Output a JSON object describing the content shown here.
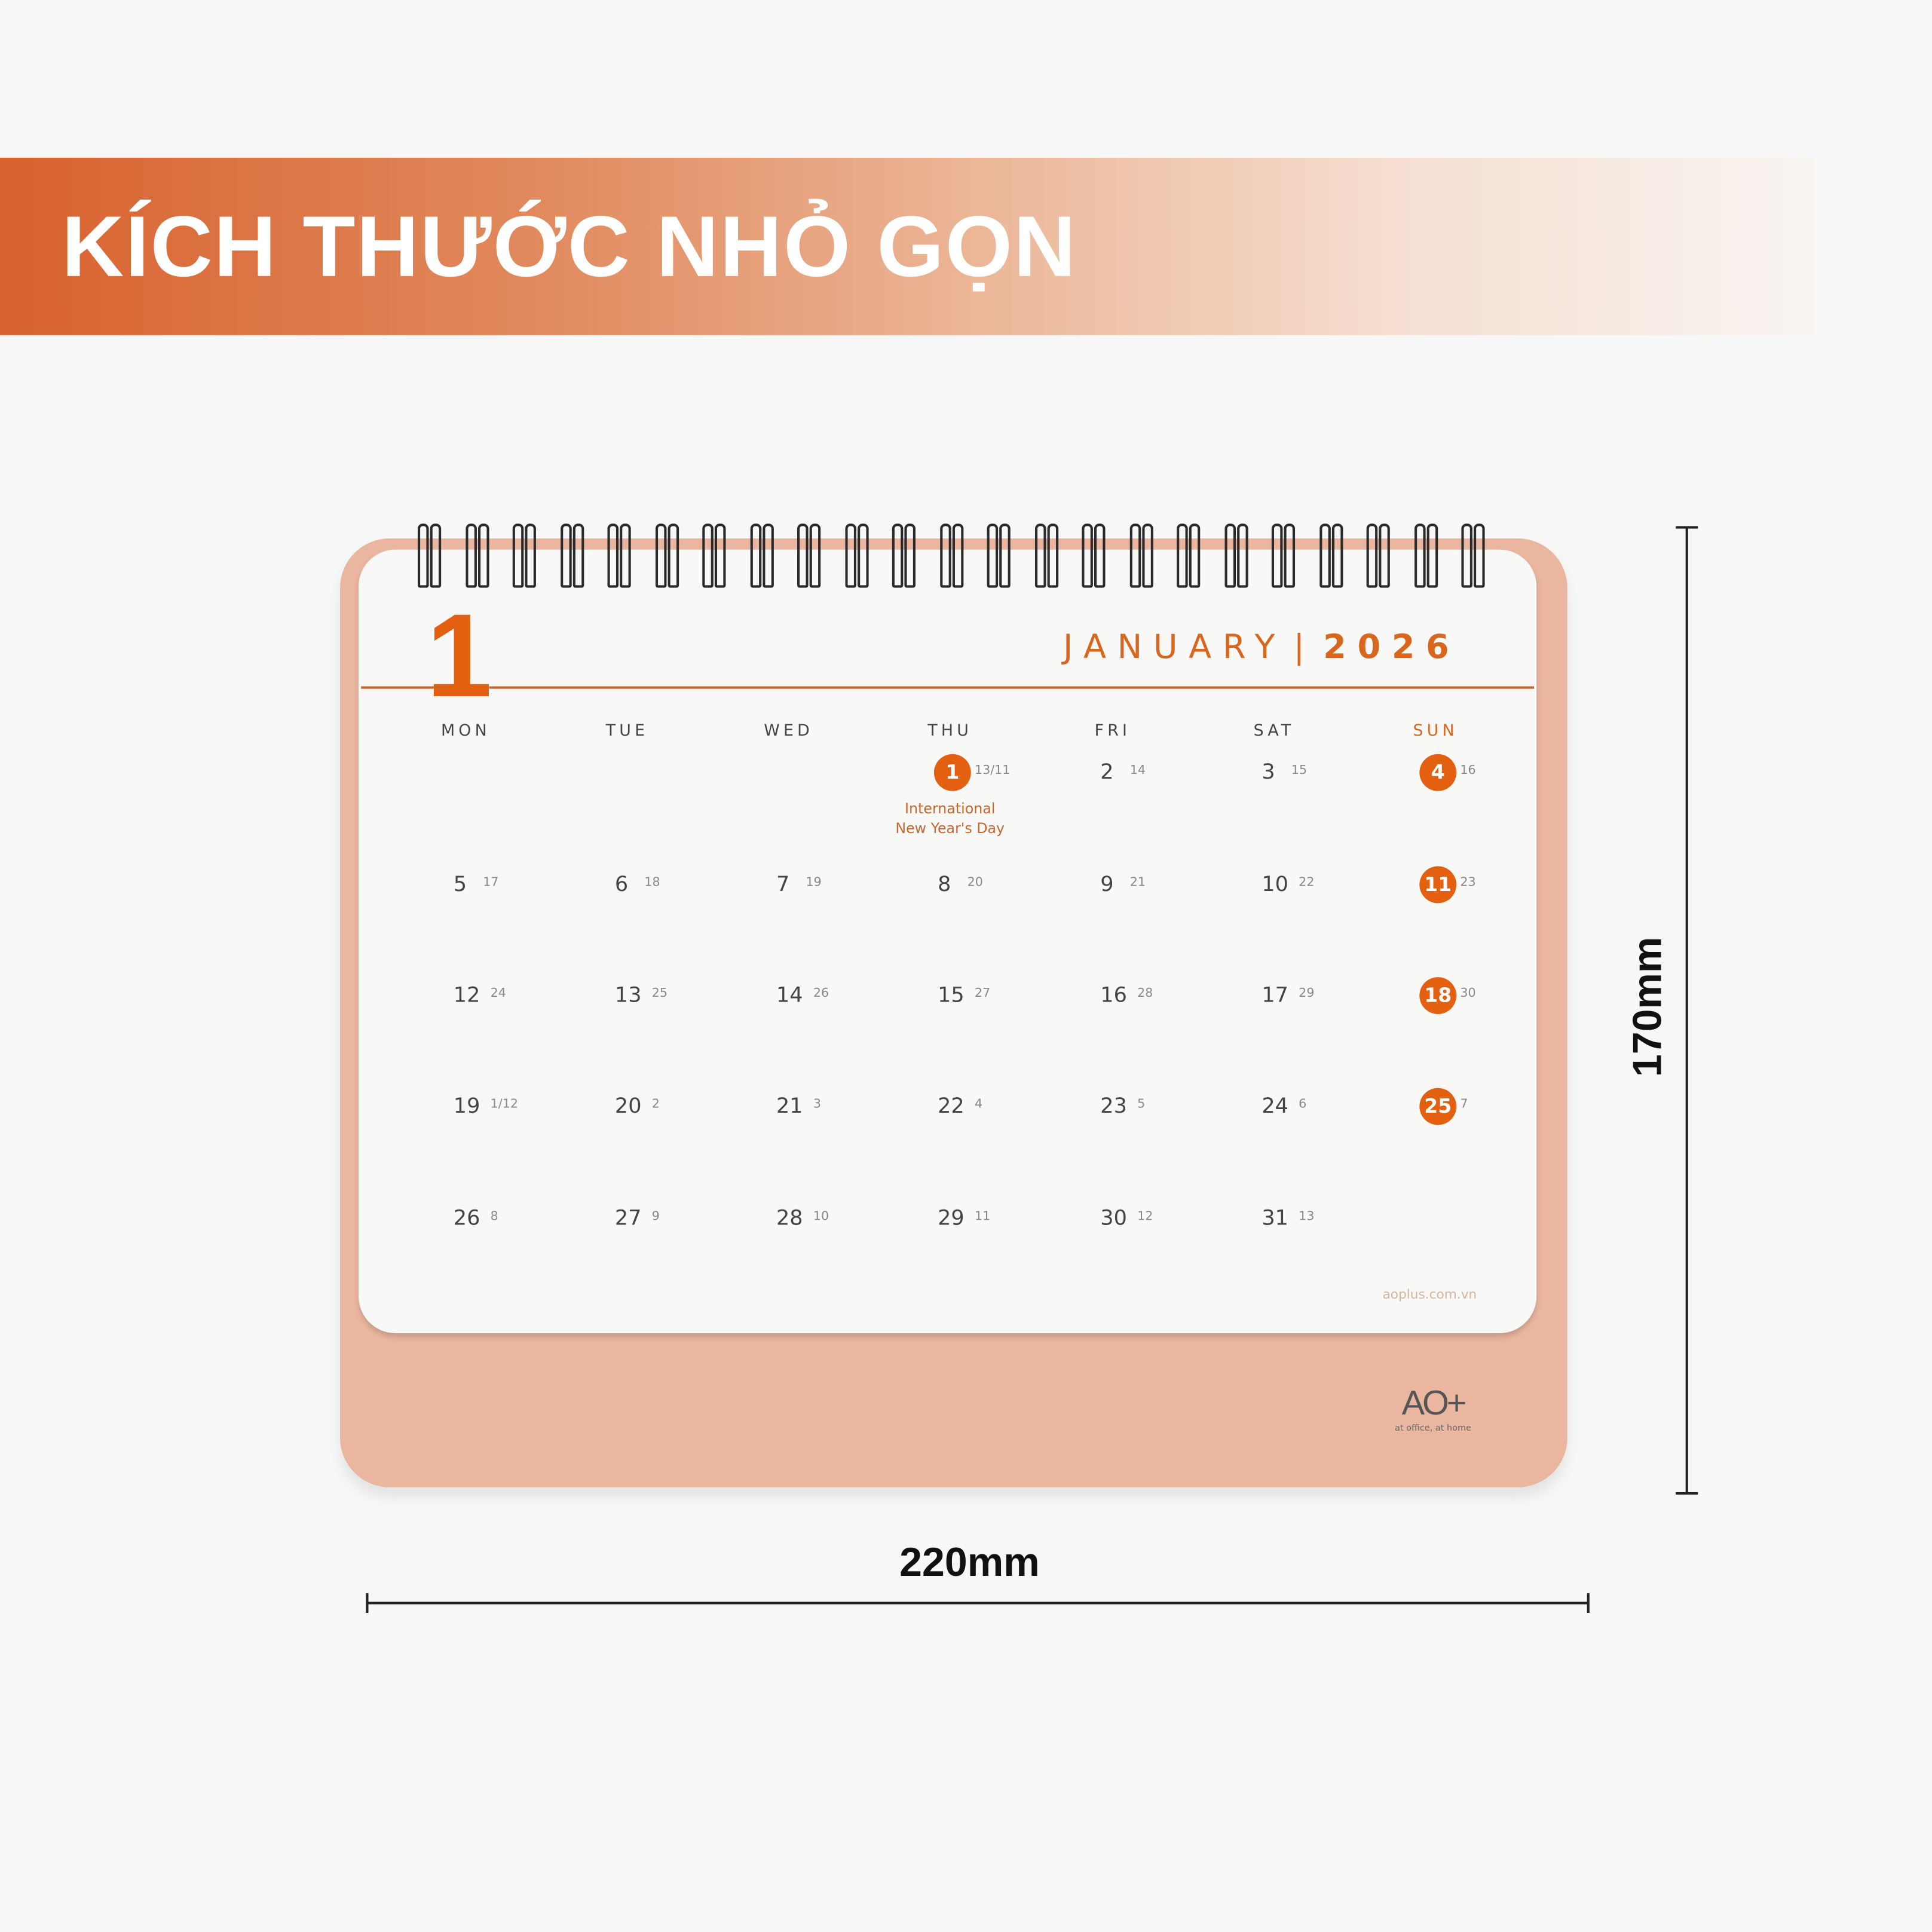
{
  "banner": {
    "title": "KÍCH THƯỚC NHỎ GỌN"
  },
  "calendar": {
    "month_number": "1",
    "month_name": "JANUARY",
    "separator": "|",
    "year": "2026",
    "weekdays": [
      "MON",
      "TUE",
      "WED",
      "THU",
      "FRI",
      "SAT",
      "SUN"
    ],
    "weeks": [
      [
        null,
        null,
        null,
        {
          "day": "1",
          "lunar": "13/11",
          "holiday": true
        },
        {
          "day": "2",
          "lunar": "14"
        },
        {
          "day": "3",
          "lunar": "15"
        },
        {
          "day": "4",
          "lunar": "16",
          "holiday": true
        }
      ],
      [
        {
          "day": "5",
          "lunar": "17"
        },
        {
          "day": "6",
          "lunar": "18"
        },
        {
          "day": "7",
          "lunar": "19"
        },
        {
          "day": "8",
          "lunar": "20"
        },
        {
          "day": "9",
          "lunar": "21"
        },
        {
          "day": "10",
          "lunar": "22"
        },
        {
          "day": "11",
          "lunar": "23",
          "holiday": true
        }
      ],
      [
        {
          "day": "12",
          "lunar": "24"
        },
        {
          "day": "13",
          "lunar": "25"
        },
        {
          "day": "14",
          "lunar": "26"
        },
        {
          "day": "15",
          "lunar": "27"
        },
        {
          "day": "16",
          "lunar": "28"
        },
        {
          "day": "17",
          "lunar": "29"
        },
        {
          "day": "18",
          "lunar": "30",
          "holiday": true
        }
      ],
      [
        {
          "day": "19",
          "lunar": "1/12"
        },
        {
          "day": "20",
          "lunar": "2"
        },
        {
          "day": "21",
          "lunar": "3"
        },
        {
          "day": "22",
          "lunar": "4"
        },
        {
          "day": "23",
          "lunar": "5"
        },
        {
          "day": "24",
          "lunar": "6"
        },
        {
          "day": "25",
          "lunar": "7",
          "holiday": true
        }
      ],
      [
        {
          "day": "26",
          "lunar": "8"
        },
        {
          "day": "27",
          "lunar": "9"
        },
        {
          "day": "28",
          "lunar": "10"
        },
        {
          "day": "29",
          "lunar": "11"
        },
        {
          "day": "30",
          "lunar": "12"
        },
        {
          "day": "31",
          "lunar": "13"
        },
        null
      ]
    ],
    "holiday_label_line1": "International",
    "holiday_label_line2": "New Year's Day",
    "website": "aoplus.com.vn",
    "accent_color": "#e2600f"
  },
  "logo": {
    "mark": "AO+",
    "tagline": "at office, at home"
  },
  "dimensions": {
    "width": "220mm",
    "height": "170mm"
  }
}
